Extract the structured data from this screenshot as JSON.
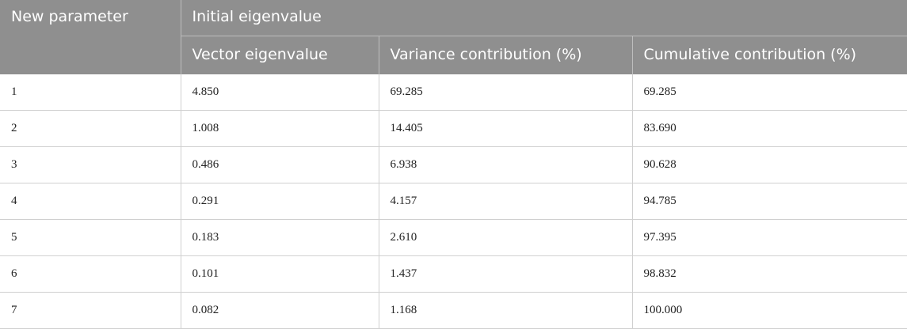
{
  "table": {
    "header": {
      "first_column": "New parameter",
      "group": "Initial eigenvalue",
      "columns": [
        "Vector eigenvalue",
        "Variance contribution (%)",
        "Cumulative contribution (%)"
      ]
    },
    "rows": [
      [
        "1",
        "4.850",
        "69.285",
        "69.285"
      ],
      [
        "2",
        "1.008",
        "14.405",
        "83.690"
      ],
      [
        "3",
        "0.486",
        "6.938",
        "90.628"
      ],
      [
        "4",
        "0.291",
        "4.157",
        "94.785"
      ],
      [
        "5",
        "0.183",
        "2.610",
        "97.395"
      ],
      [
        "6",
        "0.101",
        "1.437",
        "98.832"
      ],
      [
        "7",
        "0.082",
        "1.168",
        "100.000"
      ]
    ]
  }
}
